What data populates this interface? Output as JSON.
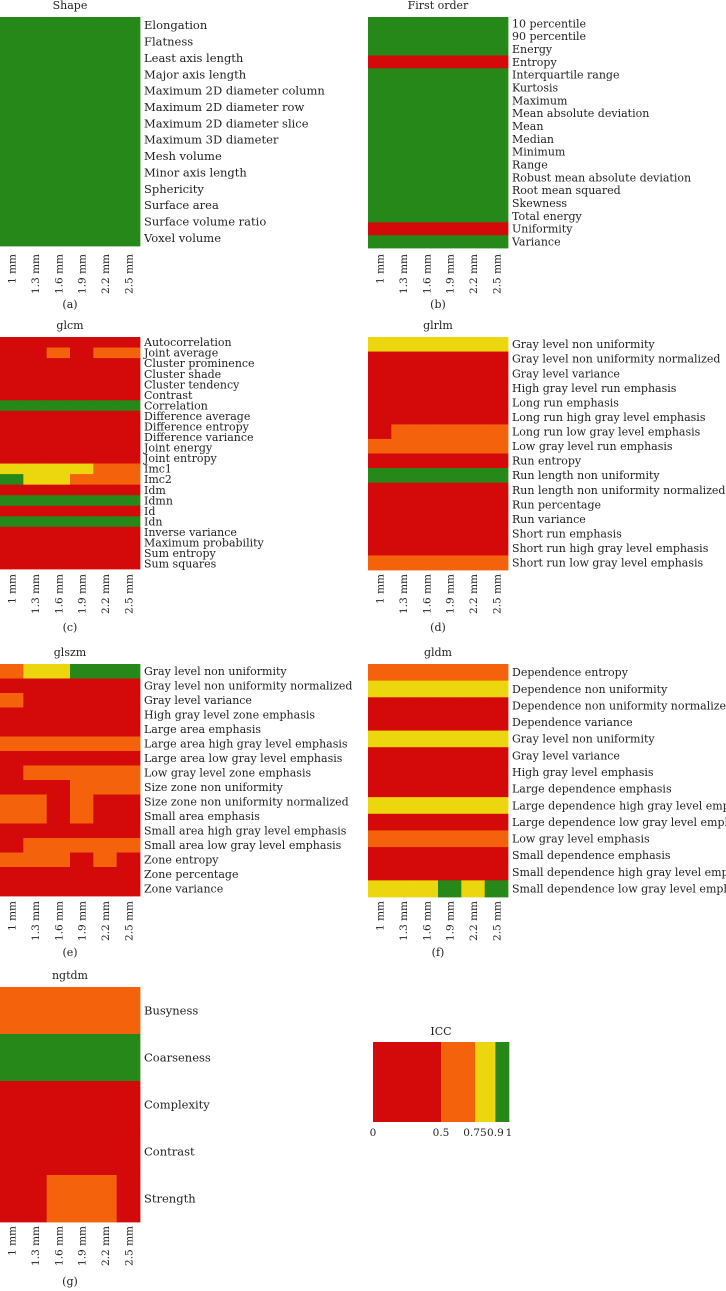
{
  "colors": {
    "red": "#d40a0a",
    "orange": "#f4630c",
    "yellow": "#ecd60e",
    "green": "#258818"
  },
  "chart_data": [
    {
      "type": "heatmap",
      "title": "Shape",
      "letter": "(a)",
      "columns": [
        "1 mm",
        "1.3 mm",
        "1.6 mm",
        "1.9 mm",
        "2.2 mm",
        "2.5 mm"
      ],
      "rows": [
        "Elongation",
        "Flatness",
        "Least axis length",
        "Major axis length",
        "Maximum 2D diameter column",
        "Maximum 2D diameter row",
        "Maximum 2D diameter slice",
        "Maximum 3D diameter",
        "Mesh volume",
        "Minor axis length",
        "Sphericity",
        "Surface area",
        "Surface volume ratio",
        "Voxel volume"
      ],
      "cells": [
        "GGGGGG",
        "GGGGGG",
        "GGGGGG",
        "GGGGGG",
        "GGGGGG",
        "GGGGGG",
        "GGGGGG",
        "GGGGGG",
        "GGGGGG",
        "GGGGGG",
        "GGGGGG",
        "GGGGGG",
        "GGGGGG",
        "GGGGGG"
      ]
    },
    {
      "type": "heatmap",
      "title": "First order",
      "letter": "(b)",
      "columns": [
        "1 mm",
        "1.3 mm",
        "1.6 mm",
        "1.9 mm",
        "2.2 mm",
        "2.5 mm"
      ],
      "rows": [
        "10 percentile",
        "90 percentile",
        "Energy",
        "Entropy",
        "Interquartile range",
        "Kurtosis",
        "Maximum",
        "Mean absolute deviation",
        "Mean",
        "Median",
        "Minimum",
        "Range",
        "Robust mean absolute deviation",
        "Root mean squared",
        "Skewness",
        "Total energy",
        "Uniformity",
        "Variance"
      ],
      "cells": [
        "GGGGGG",
        "GGGGGG",
        "GGGGGG",
        "RRRRRR",
        "GGGGGG",
        "GGGGGG",
        "GGGGGG",
        "GGGGGG",
        "GGGGGG",
        "GGGGGG",
        "GGGGGG",
        "GGGGGG",
        "GGGGGG",
        "GGGGGG",
        "GGGGGG",
        "GGGGGG",
        "RRRRRR",
        "GGGGGG"
      ]
    },
    {
      "type": "heatmap",
      "title": "glcm",
      "letter": "(c)",
      "columns": [
        "1 mm",
        "1.3 mm",
        "1.6 mm",
        "1.9 mm",
        "2.2 mm",
        "2.5 mm"
      ],
      "rows": [
        "Autocorrelation",
        "Joint average",
        "Cluster prominence",
        "Cluster shade",
        "Cluster tendency",
        "Contrast",
        "Correlation",
        "Difference average",
        "Difference entropy",
        "Difference variance",
        "Joint energy",
        "Joint entropy",
        "Imc1",
        "Imc2",
        "Idm",
        "Idmn",
        "Id",
        "Idn",
        "Inverse variance",
        "Maximum probability",
        "Sum entropy",
        "Sum squares"
      ],
      "cells": [
        "RRRRRR",
        "RROROO",
        "RRRRRR",
        "RRRRRR",
        "RRRRRR",
        "RRRRRR",
        "GGGGGG",
        "RRRRRR",
        "RRRRRR",
        "RRRRRR",
        "RRRRRR",
        "RRRRRR",
        "YYYYOO",
        "GYYOOO",
        "RRRRRR",
        "GGGGGG",
        "RRRRRR",
        "GGGGGG",
        "RRRRRR",
        "RRRRRR",
        "RRRRRR",
        "RRRRRR"
      ]
    },
    {
      "type": "heatmap",
      "title": "glrlm",
      "letter": "(d)",
      "columns": [
        "1 mm",
        "1.3 mm",
        "1.6 mm",
        "1.9 mm",
        "2.2 mm",
        "2.5 mm"
      ],
      "rows": [
        "Gray level non uniformity",
        "Gray level non uniformity normalized",
        "Gray level variance",
        "High gray level run emphasis",
        "Long run emphasis",
        "Long run high gray level emphasis",
        "Long run low gray level emphasis",
        "Low gray level run emphasis",
        "Run entropy",
        "Run length non uniformity",
        "Run length non uniformity normalized",
        "Run percentage",
        "Run variance",
        "Short run emphasis",
        "Short run high gray level emphasis",
        "Short run low gray level emphasis"
      ],
      "cells": [
        "YYYYYY",
        "RRRRRR",
        "RRRRRR",
        "RRRRRR",
        "RRRRRR",
        "RRRRRR",
        "ROOOOO",
        "OOOOOO",
        "RRRRRR",
        "GGGGGG",
        "RRRRRR",
        "RRRRRR",
        "RRRRRR",
        "RRRRRR",
        "RRRRRR",
        "OOOOOO"
      ]
    },
    {
      "type": "heatmap",
      "title": "glszm",
      "letter": "(e)",
      "columns": [
        "1 mm",
        "1.3 mm",
        "1.6 mm",
        "1.9 mm",
        "2.2 mm",
        "2.5 mm"
      ],
      "rows": [
        "Gray level non uniformity",
        "Gray level non uniformity normalized",
        "Gray level variance",
        "High gray level zone emphasis",
        "Large area emphasis",
        "Large area high gray level emphasis",
        "Large area low gray level emphasis",
        "Low gray level zone emphasis",
        "Size zone non uniformity",
        "Size zone non uniformity normalized",
        "Small area emphasis",
        "Small area high gray level emphasis",
        "Small area low gray level emphasis",
        "Zone entropy",
        "Zone percentage",
        "Zone variance"
      ],
      "cells": [
        "OYYGGG",
        "RRRRRR",
        "ORRRRR",
        "RRRRRR",
        "RRRRRR",
        "OOOOOO",
        "RRRRRR",
        "ROOOOO",
        "RRROOO",
        "OORORR",
        "OORORR",
        "RRRRRR",
        "ROOOOO",
        "OOOROR",
        "RRRRRR",
        "RRRRRR"
      ]
    },
    {
      "type": "heatmap",
      "title": "gldm",
      "letter": "(f)",
      "columns": [
        "1 mm",
        "1.3 mm",
        "1.6 mm",
        "1.9 mm",
        "2.2 mm",
        "2.5 mm"
      ],
      "rows": [
        "Dependence entropy",
        "Dependence non uniformity",
        "Dependence non uniformity normalized",
        "Dependence variance",
        "Gray level non uniformity",
        "Gray level variance",
        "High gray level emphasis",
        "Large dependence emphasis",
        "Large dependence high gray level emphasis",
        "Large dependence low gray level emphasis",
        "Low gray level emphasis",
        "Small dependence emphasis",
        "Small dependence high gray level emphasis",
        "Small dependence low gray level emphasis"
      ],
      "cells": [
        "OOOOOO",
        "YYYYYY",
        "RRRRRR",
        "RRRRRR",
        "YYYYYY",
        "RRRRRR",
        "RRRRRR",
        "RRRRRR",
        "YYYYYY",
        "RRRRRR",
        "OOOOOO",
        "RRRRRR",
        "RRRRRR",
        "YYYGYG"
      ]
    },
    {
      "type": "heatmap",
      "title": "ngtdm",
      "letter": "(g)",
      "columns": [
        "1 mm",
        "1.3 mm",
        "1.6 mm",
        "1.9 mm",
        "2.2 mm",
        "2.5 mm"
      ],
      "rows": [
        "Busyness",
        "Coarseness",
        "Complexity",
        "Contrast",
        "Strength"
      ],
      "cells": [
        "OOOOOO",
        "GGGGGG",
        "RRRRRR",
        "RRRRRR",
        "RROOOR"
      ]
    }
  ],
  "legend": {
    "title": "ICC",
    "stops": [
      0,
      0.5,
      0.75,
      0.9,
      1
    ],
    "tick_labels": [
      "0",
      "0.5",
      "0.75",
      "0.9",
      "1"
    ],
    "bins": [
      "R",
      "O",
      "Y",
      "G"
    ]
  }
}
